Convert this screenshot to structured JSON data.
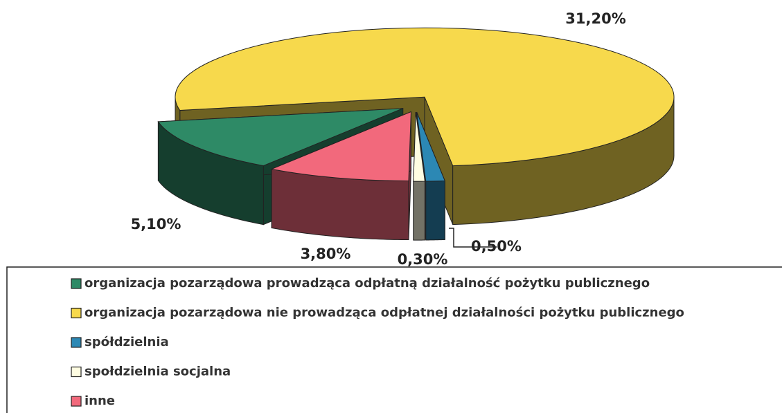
{
  "chart_data": {
    "type": "pie",
    "categories": [
      "organizacja pozarządowa prowadząca odpłatną działalność pożytku publicznego",
      "organizacja pozarządowa nie prowadząca odpłatnej działalności pożytku publicznego",
      "spółdzielnia",
      "społdzielnia socjalna",
      "inne"
    ],
    "values": [
      5.1,
      31.2,
      0.5,
      0.3,
      3.8
    ],
    "value_labels": [
      "5,10%",
      "31,20%",
      "0,50%",
      "0,30%",
      "3,80%"
    ],
    "colors": [
      "#2e8a66",
      "#f7d94c",
      "#2c88b4",
      "#fffde2",
      "#f2697c"
    ],
    "legend": "bottom"
  }
}
